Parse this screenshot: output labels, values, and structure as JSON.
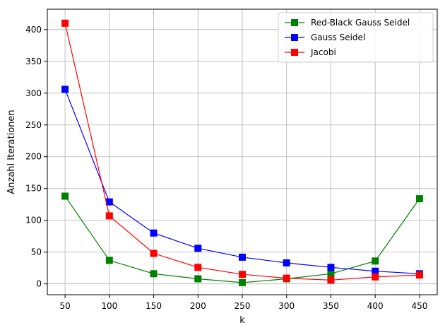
{
  "chart_data": {
    "type": "line",
    "title": "",
    "xlabel": "k",
    "ylabel": "Anzahl Iterationen",
    "x": [
      50,
      100,
      150,
      200,
      250,
      300,
      350,
      400,
      450
    ],
    "xlim": [
      30,
      470
    ],
    "ylim": [
      -17,
      432
    ],
    "xticks": [
      "50",
      "100",
      "150",
      "200",
      "250",
      "300",
      "350",
      "400",
      "450"
    ],
    "yticks": [
      "0",
      "50",
      "100",
      "150",
      "200",
      "250",
      "300",
      "350",
      "400"
    ],
    "grid": true,
    "legend_position": "top-right",
    "series": [
      {
        "name": "Red-Black Gauss Seidel",
        "color": "#008000",
        "marker": "square",
        "values": [
          138,
          37,
          16,
          8,
          2,
          8,
          16,
          36,
          134
        ]
      },
      {
        "name": "Gauss Seidel",
        "color": "#0000ff",
        "marker": "square",
        "values": [
          306,
          129,
          80,
          56,
          42,
          33,
          26,
          20,
          16
        ]
      },
      {
        "name": "Jacobi",
        "color": "#ff0000",
        "marker": "square",
        "values": [
          410,
          107,
          48,
          26,
          15,
          9,
          6,
          11,
          14
        ]
      }
    ]
  }
}
